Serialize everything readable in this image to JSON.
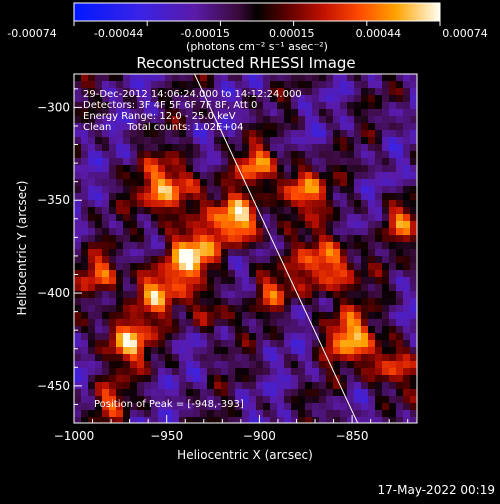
{
  "colorbar": {
    "tick_labels": [
      "-0.00074",
      "-0.00044",
      "-0.00015",
      "0.00015",
      "0.00044",
      "0.00074"
    ],
    "units": "(photons cm⁻² s⁻¹ asec⁻²)"
  },
  "image": {
    "title": "Reconstructed RHESSI Image",
    "info_lines": [
      "29-Dec-2012 14:06:24.000 to 14:12:24.000",
      "Detectors: 3F 4F 5F 6F 7F 8F, Att 0",
      "Energy Range: 12.0 - 25.0 keV",
      "Clean     Total counts: 1.02E+04"
    ],
    "peak_label": "Position of Peak = [-948,-393]",
    "x_axis_label": "Heliocentric X (arcsec)",
    "y_axis_label": "Heliocentric Y (arcsec)",
    "x_ticks": [
      "-1000",
      "-950",
      "-900",
      "-850"
    ],
    "y_ticks": [
      "-300",
      "-350",
      "-400",
      "-450"
    ],
    "x_range": [
      -1000,
      -815
    ],
    "y_range": [
      -470,
      -282
    ],
    "limb_line": {
      "from": [
        -935,
        -282
      ],
      "to": [
        -847,
        -470
      ]
    }
  },
  "footer": {
    "timestamp": "17-May-2022 00:19"
  },
  "colors": {
    "background": "#000000",
    "text": "#ffffff"
  }
}
